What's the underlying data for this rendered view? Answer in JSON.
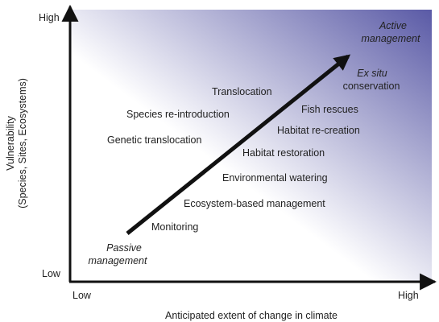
{
  "colors": {
    "gradient_light": "#ffffff",
    "gradient_dark": "#5a5aa6",
    "axis": "#111111",
    "text": "#222222"
  },
  "axes": {
    "y_title_line1": "Vulnerability",
    "y_title_line2": "(Species, Sites, Ecosystems)",
    "y_high": "High",
    "y_low": "Low",
    "x_title": "Anticipated extent of change in climate",
    "x_low": "Low",
    "x_high": "High"
  },
  "arrow": {
    "start_label": [
      "Passive",
      "management"
    ],
    "end_label": [
      "Active",
      "management"
    ]
  },
  "labels": {
    "ex_situ": [
      "Ex situ",
      "conservation"
    ],
    "translocation": "Translocation",
    "species_reintroduction": "Species re-introduction",
    "fish_rescues": "Fish rescues",
    "genetic_translocation": "Genetic translocation",
    "habitat_recreation": "Habitat re-creation",
    "habitat_restoration": "Habitat restoration",
    "environmental_watering": "Environmental watering",
    "ecosystem_based_management": "Ecosystem-based management",
    "monitoring": "Monitoring"
  }
}
